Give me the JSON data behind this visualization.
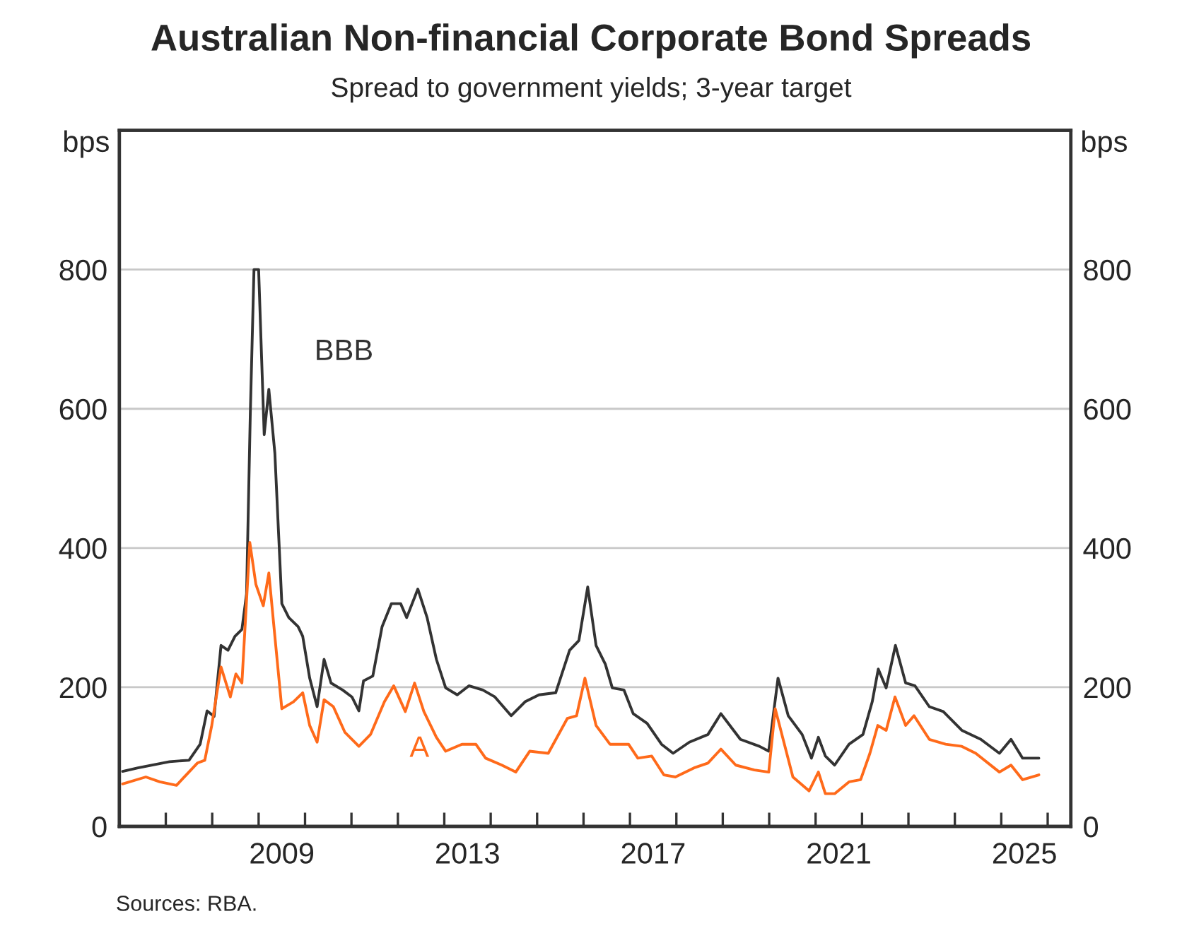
{
  "chart_data": {
    "type": "line",
    "title": "Australian Non-financial Corporate Bond Spreads",
    "subtitle": "Spread to government yields; 3-year target",
    "ylabel": "bps",
    "y2label": "bps",
    "series": [
      {
        "name": "BBB",
        "color": "#333333",
        "x": [
          2006.07,
          2006.4,
          2007.08,
          2007.5,
          2007.74,
          2007.89,
          2008.04,
          2008.19,
          2008.34,
          2008.49,
          2008.64,
          2008.74,
          2008.82,
          2008.9,
          2009.0,
          2009.12,
          2009.22,
          2009.35,
          2009.5,
          2009.65,
          2009.85,
          2009.95,
          2010.1,
          2010.26,
          2010.41,
          2010.56,
          2010.81,
          2011.01,
          2011.16,
          2011.26,
          2011.46,
          2011.66,
          2011.86,
          2012.06,
          2012.19,
          2012.43,
          2012.63,
          2012.83,
          2013.03,
          2013.28,
          2013.53,
          2013.83,
          2014.09,
          2014.44,
          2014.74,
          2015.04,
          2015.4,
          2015.7,
          2015.9,
          2016.09,
          2016.27,
          2016.47,
          2016.62,
          2016.87,
          2017.07,
          2017.37,
          2017.68,
          2017.93,
          2018.28,
          2018.68,
          2018.96,
          2019.38,
          2019.79,
          2019.99,
          2020.19,
          2020.41,
          2020.71,
          2020.91,
          2021.06,
          2021.21,
          2021.41,
          2021.72,
          2022.02,
          2022.22,
          2022.35,
          2022.52,
          2022.72,
          2022.94,
          2023.14,
          2023.45,
          2023.75,
          2024.15,
          2024.56,
          2024.96,
          2025.21,
          2025.46,
          2025.81
        ],
        "values": [
          79,
          84,
          93,
          95,
          118,
          166,
          158,
          260,
          253,
          273,
          283,
          334,
          591,
          800,
          800,
          563,
          628,
          536,
          320,
          300,
          287,
          273,
          213,
          172,
          240,
          206,
          196,
          186,
          166,
          209,
          216,
          287,
          320,
          320,
          300,
          341,
          300,
          240,
          199,
          189,
          202,
          196,
          186,
          159,
          179,
          189,
          192,
          253,
          267,
          344,
          260,
          233,
          199,
          196,
          162,
          148,
          118,
          105,
          121,
          132,
          162,
          125,
          115,
          108,
          213,
          159,
          132,
          98,
          128,
          101,
          88,
          118,
          132,
          179,
          226,
          199,
          260,
          206,
          202,
          172,
          165,
          138,
          125,
          105,
          125,
          98,
          98
        ]
      },
      {
        "name": "A",
        "color": "#ff6a1a",
        "x": [
          2006.07,
          2006.57,
          2006.87,
          2007.23,
          2007.68,
          2007.84,
          2007.99,
          2008.19,
          2008.39,
          2008.51,
          2008.64,
          2008.81,
          2008.94,
          2009.1,
          2009.22,
          2009.35,
          2009.5,
          2009.75,
          2009.95,
          2010.1,
          2010.26,
          2010.41,
          2010.61,
          2010.86,
          2011.16,
          2011.41,
          2011.71,
          2011.91,
          2012.16,
          2012.36,
          2012.56,
          2012.83,
          2013.03,
          2013.38,
          2013.68,
          2013.89,
          2014.24,
          2014.54,
          2014.84,
          2015.24,
          2015.65,
          2015.85,
          2016.03,
          2016.27,
          2016.57,
          2016.97,
          2017.17,
          2017.47,
          2017.73,
          2017.98,
          2018.38,
          2018.68,
          2018.96,
          2019.28,
          2019.68,
          2019.99,
          2020.13,
          2020.51,
          2020.86,
          2021.06,
          2021.21,
          2021.41,
          2021.72,
          2021.97,
          2022.17,
          2022.34,
          2022.52,
          2022.71,
          2022.94,
          2023.12,
          2023.45,
          2023.8,
          2024.15,
          2024.45,
          2024.96,
          2025.21,
          2025.46,
          2025.81
        ],
        "values": [
          61,
          71,
          64,
          59,
          91,
          95,
          145,
          229,
          186,
          219,
          206,
          408,
          348,
          317,
          364,
          273,
          169,
          179,
          192,
          145,
          121,
          182,
          172,
          135,
          115,
          132,
          179,
          202,
          165,
          206,
          165,
          128,
          108,
          118,
          118,
          98,
          88,
          78,
          108,
          105,
          155,
          159,
          213,
          145,
          118,
          118,
          98,
          101,
          74,
          71,
          84,
          91,
          111,
          88,
          81,
          78,
          169,
          71,
          51,
          78,
          47,
          47,
          64,
          67,
          105,
          145,
          138,
          186,
          145,
          159,
          125,
          118,
          115,
          105,
          78,
          88,
          67,
          74
        ]
      }
    ],
    "xlim": [
      2006,
      2026.5
    ],
    "xticks": [
      {
        "value": 2007,
        "label": null
      },
      {
        "value": 2008,
        "label": null
      },
      {
        "value": 2009,
        "label": null
      },
      {
        "value": 2010,
        "label": null
      },
      {
        "value": 2011,
        "label": null
      },
      {
        "value": 2012,
        "label": null
      },
      {
        "value": 2013,
        "label": null
      },
      {
        "value": 2014,
        "label": null
      },
      {
        "value": 2015,
        "label": null
      },
      {
        "value": 2016,
        "label": null
      },
      {
        "value": 2017,
        "label": null
      },
      {
        "value": 2018,
        "label": null
      },
      {
        "value": 2019,
        "label": null
      },
      {
        "value": 2020,
        "label": null
      },
      {
        "value": 2021,
        "label": null
      },
      {
        "value": 2022,
        "label": null
      },
      {
        "value": 2023,
        "label": null
      },
      {
        "value": 2024,
        "label": null
      },
      {
        "value": 2025,
        "label": null
      },
      {
        "value": 2026,
        "label": null
      },
      {
        "value": 2009.5,
        "label": "2009"
      },
      {
        "value": 2013.5,
        "label": "2013"
      },
      {
        "value": 2017.5,
        "label": "2017"
      },
      {
        "value": 2021.5,
        "label": "2021"
      },
      {
        "value": 2025.5,
        "label": "2025"
      }
    ],
    "ylim": [
      0,
      1000
    ],
    "yticks": [
      0,
      200,
      400,
      600,
      800
    ],
    "y2lim": [
      0,
      1000
    ],
    "y2ticks": [
      0,
      200,
      400,
      600,
      800
    ],
    "grid": "y",
    "legend": false,
    "annotations": [
      "Sources: RBA."
    ]
  }
}
